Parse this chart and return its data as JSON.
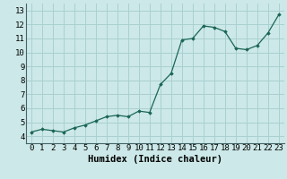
{
  "x": [
    0,
    1,
    2,
    3,
    4,
    5,
    6,
    7,
    8,
    9,
    10,
    11,
    12,
    13,
    14,
    15,
    16,
    17,
    18,
    19,
    20,
    21,
    22,
    23
  ],
  "y": [
    4.3,
    4.5,
    4.4,
    4.3,
    4.6,
    4.8,
    5.1,
    5.4,
    5.5,
    5.4,
    5.8,
    5.7,
    7.7,
    8.5,
    10.9,
    11.0,
    11.9,
    11.8,
    11.5,
    10.3,
    10.2,
    10.5,
    11.4,
    12.7
  ],
  "xlabel": "Humidex (Indice chaleur)",
  "ylim": [
    3.5,
    13.5
  ],
  "xlim": [
    -0.5,
    23.5
  ],
  "yticks": [
    4,
    5,
    6,
    7,
    8,
    9,
    10,
    11,
    12,
    13
  ],
  "xticks": [
    0,
    1,
    2,
    3,
    4,
    5,
    6,
    7,
    8,
    9,
    10,
    11,
    12,
    13,
    14,
    15,
    16,
    17,
    18,
    19,
    20,
    21,
    22,
    23
  ],
  "bg_color": "#cce8e8",
  "grid_color": "#aad0d0",
  "line_color": "#1a6655",
  "marker_color": "#1a6655",
  "xlabel_fontsize": 7.5,
  "tick_fontsize": 6.5
}
